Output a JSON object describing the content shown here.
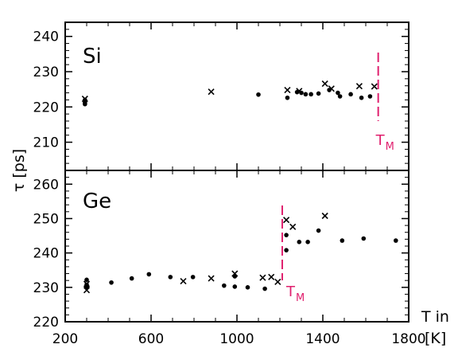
{
  "chart_data": [
    {
      "panel": "Si",
      "type": "scatter",
      "label": "Si",
      "ylim": [
        202,
        244
      ],
      "yticks": [
        210,
        220,
        230,
        240
      ],
      "melting": {
        "x": 1658,
        "label": "T",
        "sub": "M"
      },
      "series": [
        {
          "marker": "dot",
          "points": [
            [
              292,
              222.0
            ],
            [
              292,
              221.2
            ],
            [
              292,
              220.8
            ],
            [
              1100,
              223.5
            ],
            [
              1235,
              222.6
            ],
            [
              1280,
              224.2
            ],
            [
              1300,
              224.0
            ],
            [
              1320,
              223.6
            ],
            [
              1345,
              223.6
            ],
            [
              1380,
              223.8
            ],
            [
              1430,
              224.8
            ],
            [
              1470,
              224.0
            ],
            [
              1480,
              223.0
            ],
            [
              1530,
              223.6
            ],
            [
              1580,
              222.6
            ],
            [
              1620,
              223.0
            ]
          ]
        },
        {
          "marker": "cross",
          "points": [
            [
              292,
              222.3
            ],
            [
              880,
              224.3
            ],
            [
              1235,
              224.8
            ],
            [
              1290,
              224.5
            ],
            [
              1410,
              226.6
            ],
            [
              1440,
              225.2
            ],
            [
              1570,
              225.9
            ],
            [
              1640,
              225.8
            ]
          ]
        }
      ]
    },
    {
      "panel": "Ge",
      "type": "scatter",
      "label": "Ge",
      "ylim": [
        220,
        264
      ],
      "yticks": [
        220,
        230,
        240,
        250,
        260
      ],
      "xlim": [
        200,
        1800
      ],
      "xticks": [
        200,
        600,
        1000,
        1400,
        1800
      ],
      "xlabel": "T in",
      "xunit": "[K]",
      "ylabel": "τ [ps]",
      "melting": {
        "x": 1211,
        "label": "T",
        "sub": "M"
      },
      "series": [
        {
          "marker": "dot",
          "points": [
            [
              300,
              232.2
            ],
            [
              300,
              230.8
            ],
            [
              300,
              230.0
            ],
            [
              415,
              231.4
            ],
            [
              510,
              232.6
            ],
            [
              590,
              233.8
            ],
            [
              690,
              233.0
            ],
            [
              795,
              233.0
            ],
            [
              940,
              230.5
            ],
            [
              990,
              233.2
            ],
            [
              990,
              230.2
            ],
            [
              1050,
              230.0
            ],
            [
              1130,
              229.6
            ],
            [
              1230,
              245.2
            ],
            [
              1230,
              240.8
            ],
            [
              1290,
              243.2
            ],
            [
              1330,
              243.2
            ],
            [
              1380,
              246.5
            ],
            [
              1490,
              243.6
            ],
            [
              1590,
              244.2
            ],
            [
              1740,
              243.6
            ]
          ]
        },
        {
          "marker": "cross",
          "points": [
            [
              300,
              231.0
            ],
            [
              300,
              229.2
            ],
            [
              750,
              231.8
            ],
            [
              880,
              232.6
            ],
            [
              990,
              234.0
            ],
            [
              1120,
              232.8
            ],
            [
              1160,
              233.0
            ],
            [
              1190,
              231.6
            ],
            [
              1230,
              249.6
            ],
            [
              1260,
              247.6
            ],
            [
              1410,
              250.8
            ]
          ]
        }
      ]
    }
  ]
}
